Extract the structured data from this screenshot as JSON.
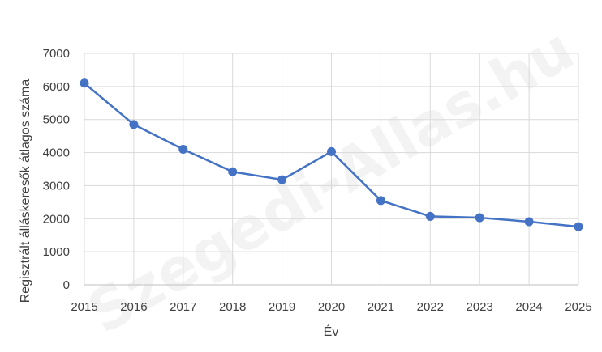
{
  "watermark": "Szegedi-Allas.hu",
  "chart_data": {
    "type": "line",
    "title": "",
    "xlabel": "Év",
    "ylabel": "Regisztrált álláskeresők átlagos száma",
    "x": [
      "2015",
      "2016",
      "2017",
      "2018",
      "2019",
      "2020",
      "2021",
      "2022",
      "2023",
      "2024",
      "2025"
    ],
    "series": [
      {
        "values": [
          6100,
          4850,
          4100,
          3420,
          3180,
          4030,
          2550,
          2070,
          2030,
          1910,
          1760
        ],
        "color": "#4472c4"
      }
    ],
    "ylim": [
      0,
      7000
    ],
    "yticks": [
      0,
      1000,
      2000,
      3000,
      4000,
      5000,
      6000,
      7000
    ],
    "grid": true,
    "legend": "none"
  }
}
